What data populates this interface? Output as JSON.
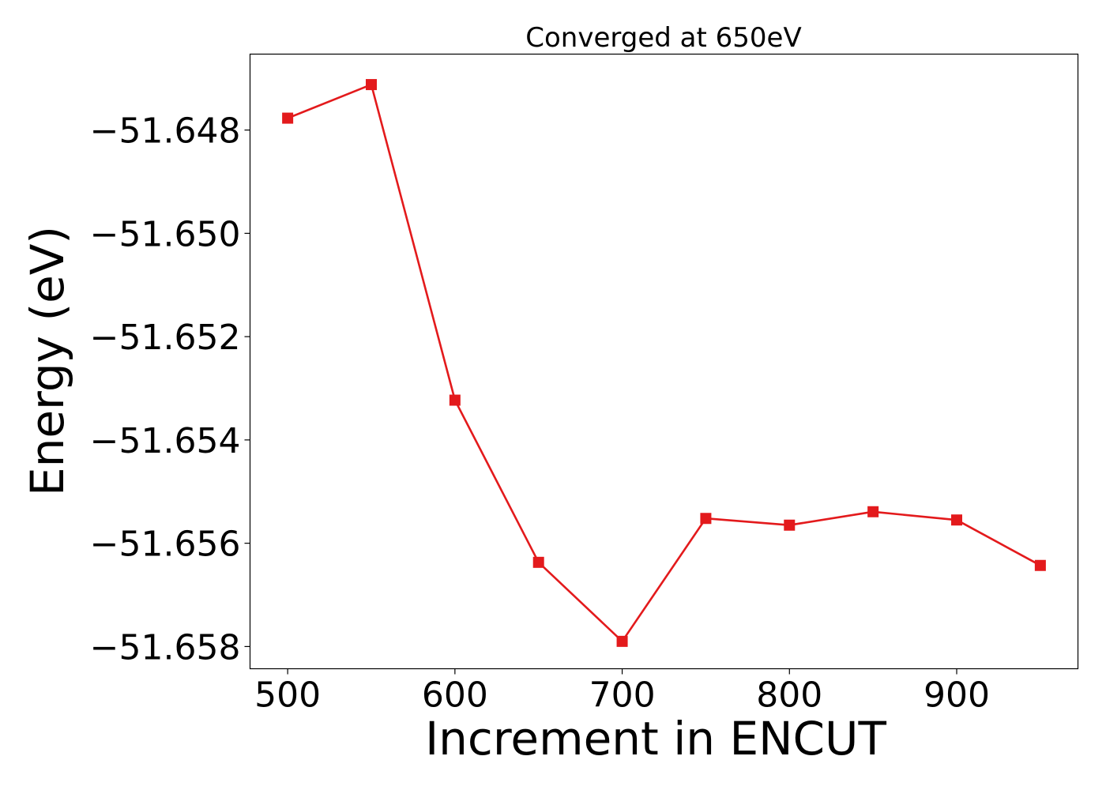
{
  "chart_data": {
    "type": "line",
    "title": "Converged at 650eV",
    "xlabel": "Increment in ENCUT",
    "ylabel": "Energy (eV)",
    "xlim": [
      477.5,
      972.5
    ],
    "ylim": [
      -51.65843,
      -51.64653
    ],
    "xticks": [
      500,
      600,
      700,
      800,
      900
    ],
    "xtick_labels": [
      "500",
      "600",
      "700",
      "800",
      "900"
    ],
    "yticks": [
      -51.648,
      -51.65,
      -51.652,
      -51.654,
      -51.656,
      -51.658
    ],
    "ytick_labels": [
      "−51.648",
      "−51.650",
      "−51.652",
      "−51.654",
      "−51.656",
      "−51.658"
    ],
    "grid": false,
    "legend": "none",
    "series": [
      {
        "color": "#e31a1c",
        "marker": "square",
        "x": [
          500,
          550,
          600,
          650,
          700,
          750,
          800,
          850,
          900,
          950
        ],
        "y": [
          -51.64777,
          -51.64712,
          -51.65323,
          -51.65637,
          -51.6579,
          -51.65552,
          -51.65565,
          -51.65539,
          -51.65555,
          -51.65643
        ]
      }
    ]
  }
}
